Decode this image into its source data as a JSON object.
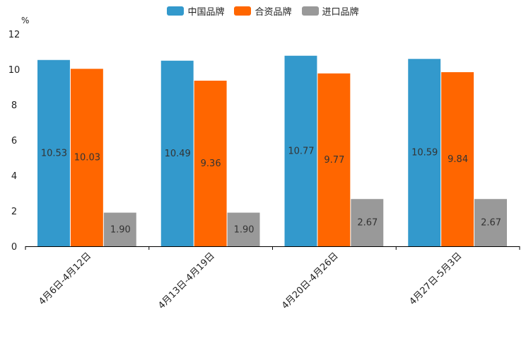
{
  "chart_data": {
    "type": "bar",
    "title": "",
    "xlabel": "",
    "ylabel": "%",
    "ylim": [
      0,
      12
    ],
    "yticks": [
      "0",
      "2",
      "4",
      "6",
      "8",
      "10",
      "12"
    ],
    "categories": [
      "4月6日-4月12日",
      "4月13日-4月19日",
      "4月20日-4月26日",
      "4月27日-5月3日"
    ],
    "series": [
      {
        "name": "中国品牌",
        "color": "#3399CC",
        "values": [
          10.53,
          10.49,
          10.77,
          10.59
        ],
        "labels": [
          "10.53",
          "10.49",
          "10.77",
          "10.59"
        ]
      },
      {
        "name": "合资品牌",
        "color": "#FF6600",
        "values": [
          10.03,
          9.36,
          9.77,
          9.84
        ],
        "labels": [
          "10.03",
          "9.36",
          "9.77",
          "9.84"
        ]
      },
      {
        "name": "进口品牌",
        "color": "#999999",
        "values": [
          1.9,
          1.9,
          2.67,
          2.67
        ],
        "labels": [
          "1.90",
          "1.90",
          "2.67",
          "2.67"
        ]
      }
    ],
    "legend_position": "top-center",
    "grid": false
  }
}
